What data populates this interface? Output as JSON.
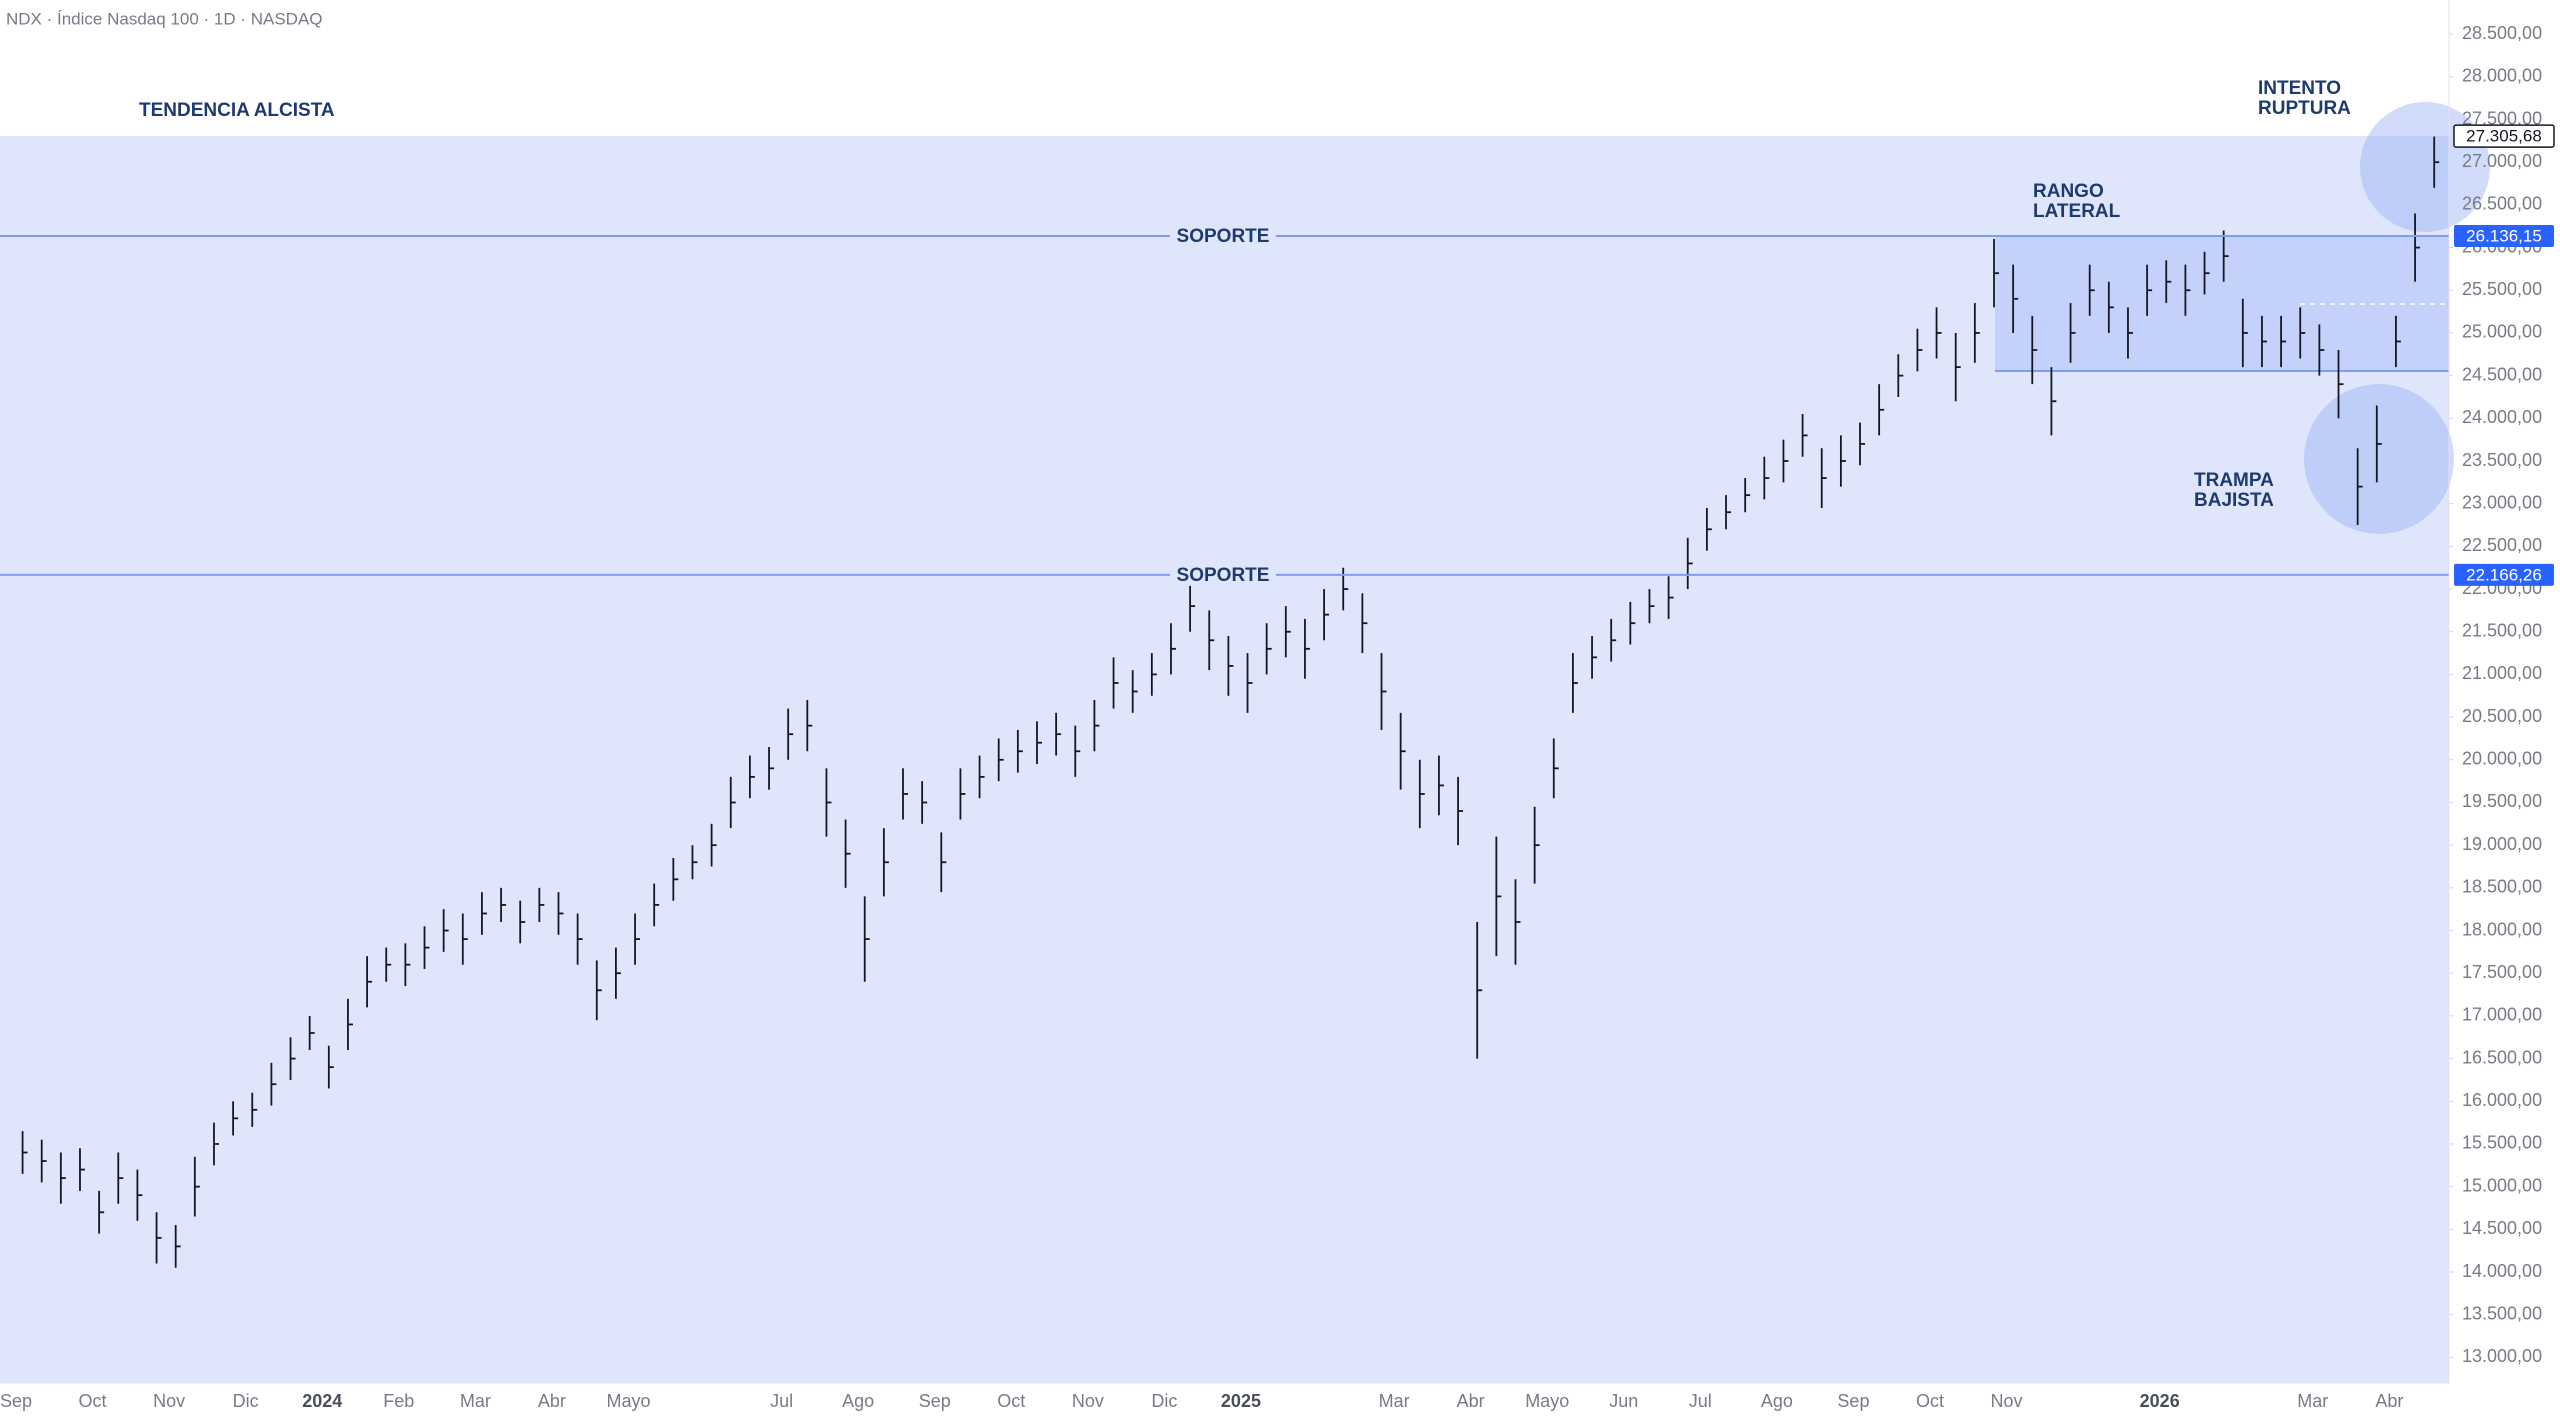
{
  "header": "NDX · Índice Nasdaq 100 · 1D · NASDAQ",
  "chart_data": {
    "type": "ohlc",
    "color": "#131722",
    "categories": [
      "Sep",
      null,
      null,
      null,
      "Oct",
      null,
      null,
      null,
      "Nov",
      null,
      null,
      null,
      "Dic",
      null,
      null,
      null,
      "2024",
      null,
      null,
      null,
      "Feb",
      null,
      null,
      null,
      "Mar",
      null,
      null,
      null,
      "Abr",
      null,
      null,
      null,
      "Mayo",
      null,
      null,
      null,
      null,
      null,
      null,
      null,
      "Jul",
      null,
      null,
      null,
      "Ago",
      null,
      null,
      null,
      "Sep",
      null,
      null,
      null,
      "Oct",
      null,
      null,
      null,
      "Nov",
      null,
      null,
      null,
      "Dic",
      null,
      null,
      null,
      "2025",
      null,
      null,
      null,
      null,
      null,
      null,
      null,
      "Mar",
      null,
      null,
      null,
      "Abr",
      null,
      null,
      null,
      "Mayo",
      null,
      null,
      null,
      "Jun",
      null,
      null,
      null,
      "Jul",
      null,
      null,
      null,
      "Ago",
      null,
      null,
      null,
      "Sep",
      null,
      null,
      null,
      "Oct",
      null,
      null,
      null,
      "Nov",
      null,
      null,
      null,
      null,
      null,
      null,
      null,
      "2026",
      null,
      null,
      null,
      null,
      null,
      null,
      null,
      "Mar",
      null,
      null,
      null,
      "Abr",
      null,
      null
    ],
    "high": [
      15650,
      15550,
      15400,
      15450,
      14950,
      15400,
      15200,
      14700,
      14550,
      15350,
      15750,
      16000,
      16100,
      16450,
      16750,
      17000,
      16650,
      17200,
      17700,
      17800,
      17850,
      18050,
      18250,
      18200,
      18450,
      18500,
      18350,
      18500,
      18450,
      18200,
      17650,
      17800,
      18200,
      18550,
      18850,
      19000,
      19250,
      19800,
      20050,
      20150,
      20600,
      20700,
      19900,
      19300,
      18400,
      19200,
      19900,
      19750,
      19150,
      19900,
      20050,
      20250,
      20350,
      20450,
      20550,
      20400,
      20700,
      21200,
      21050,
      21250,
      21600,
      22100,
      21750,
      21450,
      21250,
      21600,
      21800,
      21650,
      22000,
      22250,
      21950,
      21250,
      20550,
      20000,
      20050,
      19800,
      18100,
      19100,
      18600,
      19450,
      20250,
      21250,
      21450,
      21650,
      21850,
      22000,
      22150,
      22600,
      22950,
      23100,
      23300,
      23550,
      23750,
      24050,
      23650,
      23800,
      23950,
      24400,
      24750,
      25050,
      25300,
      25000,
      25350,
      26100,
      25800,
      25200,
      24600,
      25350,
      25800,
      25600,
      25300,
      25800,
      25850,
      25800,
      25950,
      26200,
      25400,
      25200,
      25200,
      25300,
      25100,
      24800,
      23650,
      24150,
      25200,
      26400,
      27300
    ],
    "low": [
      15150,
      15050,
      14800,
      14950,
      14450,
      14800,
      14600,
      14100,
      14050,
      14650,
      15250,
      15600,
      15700,
      15950,
      16250,
      16600,
      16150,
      16600,
      17100,
      17400,
      17350,
      17550,
      17750,
      17600,
      17950,
      18100,
      17850,
      18100,
      17950,
      17600,
      16950,
      17200,
      17600,
      18050,
      18350,
      18600,
      18750,
      19200,
      19550,
      19650,
      20000,
      20100,
      19100,
      18500,
      17400,
      18400,
      19300,
      19250,
      18450,
      19300,
      19550,
      19750,
      19850,
      19950,
      20050,
      19800,
      20100,
      20600,
      20550,
      20750,
      21000,
      21500,
      21050,
      20750,
      20550,
      21000,
      21200,
      20950,
      21400,
      21750,
      21250,
      20350,
      19650,
      19200,
      19350,
      19000,
      16500,
      17700,
      17600,
      18550,
      19550,
      20550,
      20950,
      21150,
      21350,
      21600,
      21650,
      22000,
      22450,
      22700,
      22900,
      23050,
      23250,
      23550,
      22950,
      23200,
      23450,
      23800,
      24250,
      24550,
      24700,
      24200,
      24650,
      25300,
      25000,
      24400,
      23800,
      24650,
      25200,
      25000,
      24700,
      25200,
      25350,
      25200,
      25450,
      25600,
      24600,
      24600,
      24600,
      24700,
      24500,
      24000,
      22750,
      23250,
      24600,
      25600,
      26700
    ],
    "close": [
      15400,
      15300,
      15100,
      15200,
      14700,
      15100,
      14900,
      14400,
      14300,
      15000,
      15500,
      15800,
      15900,
      16200,
      16500,
      16800,
      16400,
      16900,
      17400,
      17600,
      17600,
      17800,
      18000,
      17900,
      18200,
      18300,
      18100,
      18300,
      18200,
      17900,
      17300,
      17500,
      17900,
      18300,
      18600,
      18800,
      19000,
      19500,
      19800,
      19900,
      20300,
      20400,
      19500,
      18900,
      17900,
      18800,
      19600,
      19500,
      18800,
      19600,
      19800,
      20000,
      20100,
      20200,
      20300,
      20100,
      20400,
      20900,
      20800,
      21000,
      21300,
      21800,
      21400,
      21100,
      20900,
      21300,
      21500,
      21300,
      21700,
      22000,
      21600,
      20800,
      20100,
      19600,
      19700,
      19400,
      17300,
      18400,
      18100,
      19000,
      19900,
      20900,
      21200,
      21400,
      21600,
      21800,
      21900,
      22300,
      22700,
      22900,
      23100,
      23300,
      23500,
      23800,
      23300,
      23500,
      23700,
      24100,
      24500,
      24800,
      25000,
      24600,
      25000,
      25700,
      25400,
      24800,
      24200,
      25000,
      25500,
      25300,
      25000,
      25500,
      25600,
      25500,
      25700,
      25900,
      25000,
      24900,
      24900,
      25000,
      24800,
      24400,
      23200,
      23700,
      24900,
      26000,
      27000
    ],
    "ylim": [
      12700,
      28900
    ],
    "yticks": [
      {
        "value": 13000,
        "label": "13.000,00"
      },
      {
        "value": 13500,
        "label": "13.500,00"
      },
      {
        "value": 14000,
        "label": "14.000,00"
      },
      {
        "value": 14500,
        "label": "14.500,00"
      },
      {
        "value": 15000,
        "label": "15.000,00"
      },
      {
        "value": 15500,
        "label": "15.500,00"
      },
      {
        "value": 16000,
        "label": "16.000,00"
      },
      {
        "value": 16500,
        "label": "16.500,00"
      },
      {
        "value": 17000,
        "label": "17.000,00"
      },
      {
        "value": 17500,
        "label": "17.500,00"
      },
      {
        "value": 18000,
        "label": "18.000,00"
      },
      {
        "value": 18500,
        "label": "18.500,00"
      },
      {
        "value": 19000,
        "label": "19.000,00"
      },
      {
        "value": 19500,
        "label": "19.500,00"
      },
      {
        "value": 20000,
        "label": "20.000,00"
      },
      {
        "value": 20500,
        "label": "20.500,00"
      },
      {
        "value": 21000,
        "label": "21.000,00"
      },
      {
        "value": 21500,
        "label": "21.500,00"
      },
      {
        "value": 22000,
        "label": "22.000,00"
      },
      {
        "value": 22500,
        "label": "22.500,00"
      },
      {
        "value": 23000,
        "label": "23.000,00"
      },
      {
        "value": 23500,
        "label": "23.500,00"
      },
      {
        "value": 24000,
        "label": "24.000,00"
      },
      {
        "value": 24500,
        "label": "24.500,00"
      },
      {
        "value": 25000,
        "label": "25.000,00"
      },
      {
        "value": 25500,
        "label": "25.500,00"
      },
      {
        "value": 26000,
        "label": "26.000,00"
      },
      {
        "value": 26500,
        "label": "26.500,00"
      },
      {
        "value": 27000,
        "label": "27.000,00"
      },
      {
        "value": 27500,
        "label": "27.500,00"
      },
      {
        "value": 28000,
        "label": "28.000,00"
      },
      {
        "value": 28500,
        "label": "28.500,00"
      }
    ],
    "last_price": {
      "value": 27305.68,
      "label": "27.305,68"
    },
    "levels": [
      {
        "text": "SOPORTE",
        "value": 26136.15,
        "label": "26.136,15"
      },
      {
        "text": "SOPORTE",
        "value": 22166.26,
        "label": "22.166,26"
      }
    ],
    "annotations": [
      [
        "TENDENCIA ALCISTA"
      ],
      [
        "RANGO",
        "LATERAL"
      ],
      [
        "INTENTO",
        "RUPTURA"
      ],
      [
        "TRAMPA",
        "BAJISTA"
      ]
    ]
  }
}
